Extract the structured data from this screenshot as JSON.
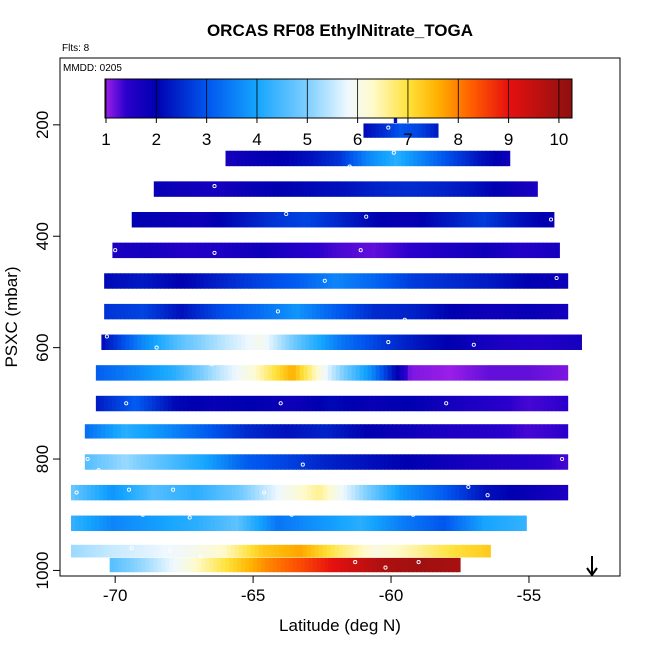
{
  "chart_data": {
    "type": "heatmap",
    "title": "ORCAS RF08 EthylNitrate_TOGA",
    "flights_note": "Flts: 8",
    "date_note": "MMDD: 0205",
    "xlabel": "Latitude (deg N)",
    "ylabel": "PSXC (mbar)",
    "xlim": [
      -72,
      -51.7
    ],
    "ylim": [
      1010,
      80
    ],
    "x_ticks": [
      -70,
      -65,
      -60,
      -55
    ],
    "x_tick_labels": [
      "-70",
      "-65",
      "-60",
      "-55"
    ],
    "y_ticks": [
      200,
      400,
      600,
      800,
      1000
    ],
    "y_tick_labels": [
      "200",
      "400",
      "600",
      "800",
      "1000"
    ],
    "colorbar": {
      "min": 0.98,
      "max": 10.26,
      "ticks": [
        1,
        2,
        3,
        4,
        5,
        6,
        7,
        8,
        9,
        10
      ],
      "tick_labels": [
        "1",
        "2",
        "3",
        "4",
        "5",
        "6",
        "7",
        "8",
        "9",
        "10"
      ],
      "stops": [
        {
          "v": 1.0,
          "c": "#9a1ee8"
        },
        {
          "v": 1.4,
          "c": "#2a00cc"
        },
        {
          "v": 2.0,
          "c": "#0000b0"
        },
        {
          "v": 3.0,
          "c": "#0055ee"
        },
        {
          "v": 4.0,
          "c": "#15a5ff"
        },
        {
          "v": 5.0,
          "c": "#7ecfff"
        },
        {
          "v": 5.8,
          "c": "#eef8ff"
        },
        {
          "v": 6.3,
          "c": "#fffacc"
        },
        {
          "v": 7.0,
          "c": "#ffe23a"
        },
        {
          "v": 7.6,
          "c": "#ffb000"
        },
        {
          "v": 8.3,
          "c": "#ff5a00"
        },
        {
          "v": 9.0,
          "c": "#e61010"
        },
        {
          "v": 10.26,
          "c": "#8e1010"
        }
      ]
    },
    "levels": [
      {
        "p": 185,
        "dp": 22,
        "x0": -59.9,
        "x1": -59.8,
        "values": [
          2.2
        ]
      },
      {
        "p": 210,
        "dp": 25,
        "x0": -61.0,
        "x1": -58.3,
        "values": [
          2.1,
          2.5,
          3.0,
          2.8,
          2.3
        ]
      },
      {
        "p": 260,
        "dp": 27,
        "x0": -66.0,
        "x1": -55.7,
        "values": [
          1.7,
          1.9,
          2.0,
          2.2,
          2.6,
          3.6,
          4.2,
          3.5,
          2.8,
          2.2,
          1.8
        ]
      },
      {
        "p": 315,
        "dp": 27,
        "x0": -68.6,
        "x1": -54.7,
        "values": [
          1.9,
          1.8,
          1.7,
          1.9,
          2.0,
          2.1,
          2.2,
          2.4,
          2.5,
          2.4,
          2.2,
          1.9,
          1.6
        ]
      },
      {
        "p": 370,
        "dp": 27,
        "x0": -69.4,
        "x1": -54.1,
        "values": [
          2.0,
          1.9,
          1.8,
          2.2,
          2.6,
          2.8,
          2.4,
          2.0,
          1.9,
          2.3,
          2.7,
          2.2,
          1.9
        ]
      },
      {
        "p": 425,
        "dp": 27,
        "x0": -70.1,
        "x1": -53.9,
        "values": [
          1.6,
          1.7,
          1.5,
          1.6,
          1.8,
          1.5,
          1.3,
          1.2,
          1.4,
          1.6,
          1.8,
          1.5,
          1.7
        ]
      },
      {
        "p": 480,
        "dp": 27,
        "x0": -70.4,
        "x1": -53.6,
        "values": [
          2.1,
          2.3,
          2.0,
          2.4,
          2.8,
          3.1,
          3.6,
          3.2,
          2.7,
          2.5,
          2.3,
          2.0,
          1.8
        ]
      },
      {
        "p": 535,
        "dp": 27,
        "x0": -70.4,
        "x1": -53.6,
        "values": [
          2.6,
          2.8,
          2.2,
          2.9,
          3.3,
          3.8,
          3.1,
          2.5,
          2.4,
          2.0,
          1.8,
          1.9,
          1.7
        ]
      },
      {
        "p": 590,
        "dp": 27,
        "x0": -70.5,
        "x1": -53.1,
        "values": [
          2.1,
          3.6,
          4.7,
          5.4,
          6.0,
          4.6,
          3.4,
          2.7,
          2.2,
          1.9,
          1.6,
          1.5,
          1.7
        ]
      },
      {
        "p": 645,
        "dp": 27,
        "x0": -70.7,
        "x1": -53.6,
        "values": [
          3.1,
          3.6,
          4.2,
          5.3,
          6.2,
          7.6,
          5.5,
          3.7,
          1.1,
          1.0,
          1.2,
          1.2,
          1.1
        ]
      },
      {
        "p": 700,
        "dp": 27,
        "x0": -70.7,
        "x1": -53.6,
        "values": [
          2.3,
          3.1,
          2.1,
          1.9,
          2.0,
          1.8,
          2.1,
          1.9,
          2.0,
          1.7,
          1.5,
          1.3,
          1.4
        ]
      },
      {
        "p": 750,
        "dp": 25,
        "x0": -71.1,
        "x1": -53.6,
        "values": [
          3.3,
          4.2,
          3.7,
          3.1,
          2.5,
          2.2,
          2.4,
          2.0,
          1.8,
          1.6,
          1.5,
          1.3,
          1.4
        ]
      },
      {
        "p": 805,
        "dp": 27,
        "x0": -71.1,
        "x1": -53.6,
        "values": [
          4.6,
          5.2,
          4.6,
          4.0,
          3.1,
          2.8,
          2.4,
          2.2,
          2.0,
          1.8,
          1.6,
          1.5,
          1.3
        ]
      },
      {
        "p": 860,
        "dp": 27,
        "x0": -71.6,
        "x1": -53.6,
        "values": [
          4.8,
          3.8,
          4.6,
          4.2,
          4.8,
          5.8,
          6.6,
          5.2,
          3.8,
          3.1,
          2.2,
          1.9,
          1.6
        ]
      },
      {
        "p": 915,
        "dp": 27,
        "x0": -71.6,
        "x1": -55.1,
        "values": [
          4.3,
          3.6,
          3.9,
          4.2,
          4.7,
          3.4,
          3.8,
          4.2,
          3.5,
          3.0,
          4.0,
          4.3
        ]
      },
      {
        "p": 965,
        "dp": 22,
        "x0": -71.6,
        "x1": -56.4,
        "values": [
          5.2,
          5.5,
          5.7,
          5.9,
          6.3,
          7.3,
          7.7,
          6.8,
          6.1,
          6.5,
          7.0,
          7.3
        ]
      },
      {
        "p": 990,
        "dp": 25,
        "x0": -70.2,
        "x1": -57.5,
        "values": [
          4.6,
          5.3,
          6.1,
          7.0,
          7.9,
          8.5,
          9.2,
          9.8,
          10.0,
          9.9
        ]
      }
    ],
    "points": [
      [
        -60.1,
        205
      ],
      [
        -61.2,
        240
      ],
      [
        -59.9,
        250
      ],
      [
        -61.5,
        275
      ],
      [
        -61.1,
        285
      ],
      [
        -66.4,
        310
      ],
      [
        -54.6,
        310
      ],
      [
        -68.9,
        335
      ],
      [
        -63.8,
        360
      ],
      [
        -60.9,
        365
      ],
      [
        -65.1,
        388
      ],
      [
        -54.2,
        370
      ],
      [
        -70.0,
        425
      ],
      [
        -66.4,
        430
      ],
      [
        -61.1,
        425
      ],
      [
        -53.8,
        455
      ],
      [
        -62.4,
        480
      ],
      [
        -54.0,
        475
      ],
      [
        -66.0,
        510
      ],
      [
        -64.1,
        535
      ],
      [
        -62.8,
        515
      ],
      [
        -59.5,
        550
      ],
      [
        -70.3,
        580
      ],
      [
        -68.5,
        600
      ],
      [
        -60.1,
        590
      ],
      [
        -57.0,
        595
      ],
      [
        -69.0,
        610
      ],
      [
        -66.5,
        630
      ],
      [
        -62.1,
        615
      ],
      [
        -53.6,
        625
      ],
      [
        -70.3,
        670
      ],
      [
        -69.6,
        700
      ],
      [
        -64.0,
        700
      ],
      [
        -58.0,
        700
      ],
      [
        -70.7,
        730
      ],
      [
        -61.7,
        770
      ],
      [
        -59.8,
        770
      ],
      [
        -71.0,
        800
      ],
      [
        -63.2,
        810
      ],
      [
        -55.8,
        780
      ],
      [
        -70.6,
        820
      ],
      [
        -61.4,
        840
      ],
      [
        -56.0,
        830
      ],
      [
        -53.8,
        800
      ],
      [
        -71.4,
        860
      ],
      [
        -69.5,
        855
      ],
      [
        -67.9,
        855
      ],
      [
        -64.6,
        860
      ],
      [
        -57.2,
        850
      ],
      [
        -56.5,
        865
      ],
      [
        -55.3,
        840
      ],
      [
        -71.5,
        895
      ],
      [
        -70.4,
        895
      ],
      [
        -69.0,
        900
      ],
      [
        -67.3,
        905
      ],
      [
        -65.8,
        890
      ],
      [
        -63.6,
        900
      ],
      [
        -59.2,
        900
      ],
      [
        -58.8,
        880
      ],
      [
        -71.5,
        940
      ],
      [
        -70.5,
        950
      ],
      [
        -69.4,
        960
      ],
      [
        -68.0,
        965
      ],
      [
        -66.9,
        975
      ],
      [
        -61.3,
        985
      ],
      [
        -60.2,
        995
      ],
      [
        -59.0,
        985
      ],
      [
        -56.2,
        960
      ]
    ]
  }
}
